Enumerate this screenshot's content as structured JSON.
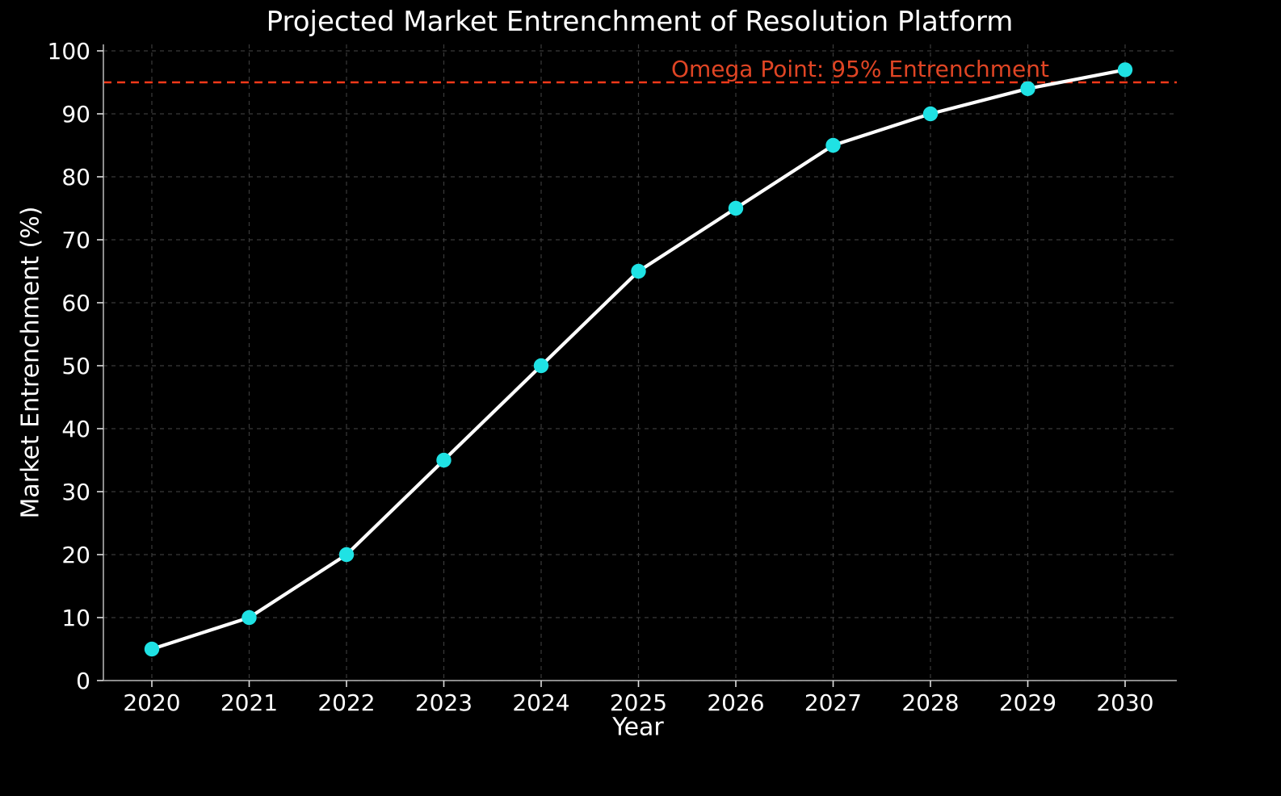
{
  "chart_data": {
    "type": "line",
    "title": "Projected Market Entrenchment of Resolution Platform",
    "xlabel": "Year",
    "ylabel": "Market Entrenchment (%)",
    "x": [
      2020,
      2021,
      2022,
      2023,
      2024,
      2025,
      2026,
      2027,
      2028,
      2029,
      2030
    ],
    "series": [
      {
        "name": "Market Entrenchment",
        "values": [
          5,
          10,
          20,
          35,
          50,
          65,
          75,
          85,
          90,
          94,
          97
        ]
      }
    ],
    "xlim": [
      2019.5,
      2030.55
    ],
    "ylim": [
      0,
      101
    ],
    "yticks": [
      0,
      10,
      20,
      30,
      40,
      50,
      60,
      70,
      80,
      90,
      100
    ],
    "grid": true,
    "grid_style": "dashed",
    "legend": false,
    "reference_line": {
      "y": 95,
      "label": "Omega Point: 95% Entrenchment",
      "style": "dashed"
    },
    "colors": {
      "background": "#000000",
      "line": "#ffffff",
      "marker": "#1fe2e4",
      "grid": "#3a3a3a",
      "text": "#ffffff",
      "spine": "#9e9e9e",
      "tick": "#e0e0e0",
      "reference_line": "#f8391a",
      "annotation_text": "#e04524"
    }
  }
}
